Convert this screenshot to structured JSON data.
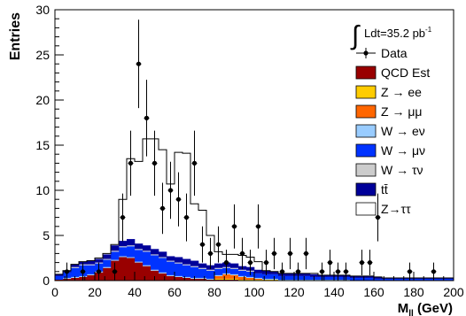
{
  "chart_data": {
    "type": "bar",
    "ylabel": "Entries",
    "xlabel": "M_ll (GeV)",
    "xlabel_main": "M",
    "xlabel_sub": "ll",
    "xlabel_unit": " (GeV)",
    "xlim": [
      0,
      200
    ],
    "ylim": [
      0,
      30
    ],
    "bin_width": 4,
    "x_ticks": [
      0,
      20,
      40,
      60,
      80,
      100,
      120,
      140,
      160,
      180,
      200
    ],
    "y_ticks": [
      0,
      5,
      10,
      15,
      20,
      25,
      30
    ],
    "luminosity_label": "Ldt=35.2 pb",
    "luminosity_sup": "-1",
    "legend_position": "top-right",
    "legend": [
      {
        "key": "data",
        "label": "Data",
        "color": "#000000",
        "marker": "point"
      },
      {
        "key": "qcd",
        "label": "QCD Est",
        "color": "#990000",
        "marker": "box"
      },
      {
        "key": "zee",
        "label": "Z → ee",
        "color": "#FFCC00",
        "marker": "box"
      },
      {
        "key": "zmumu",
        "label": "Z → μμ",
        "color": "#FF6600",
        "marker": "box"
      },
      {
        "key": "wenu",
        "label": "W → eν",
        "color": "#99CCFF",
        "marker": "box"
      },
      {
        "key": "wmunu",
        "label": "W → μν",
        "color": "#0033FF",
        "marker": "box"
      },
      {
        "key": "wtaunu",
        "label": "W → τν",
        "color": "#CCCCCC",
        "marker": "box"
      },
      {
        "key": "ttbar",
        "label": "tt̄",
        "color": "#000099",
        "marker": "box"
      },
      {
        "key": "ztautau",
        "label": "Z→ττ",
        "color": "#FFFFFF",
        "marker": "box"
      }
    ],
    "stack_series": [
      {
        "key": "qcd",
        "color": "#990000",
        "values": [
          0.1,
          0.2,
          0.3,
          0.4,
          0.6,
          0.9,
          1.4,
          2.2,
          2.6,
          2.5,
          2.0,
          1.6,
          1.1,
          0.8,
          0.5,
          0.4,
          0.3,
          0.2,
          0.2,
          0.1,
          0.1,
          0.1,
          0.1,
          0.0,
          0.0,
          0,
          0,
          0,
          0,
          0,
          0,
          0,
          0,
          0,
          0,
          0,
          0,
          0,
          0,
          0,
          0,
          0,
          0,
          0,
          0,
          0,
          0,
          0,
          0,
          0
        ]
      },
      {
        "key": "zee",
        "color": "#FFCC00",
        "values": [
          0,
          0,
          0,
          0,
          0,
          0,
          0,
          0,
          0,
          0,
          0,
          0,
          0,
          0,
          0,
          0,
          0,
          0,
          0,
          0,
          0.1,
          0.1,
          0.1,
          0.1,
          0.1,
          0.1,
          0.1,
          0.1,
          0,
          0,
          0,
          0,
          0,
          0,
          0,
          0,
          0,
          0,
          0,
          0,
          0,
          0,
          0,
          0,
          0,
          0,
          0,
          0,
          0,
          0
        ]
      },
      {
        "key": "zmumu",
        "color": "#FF6600",
        "values": [
          0,
          0,
          0,
          0,
          0,
          0,
          0,
          0,
          0,
          0,
          0,
          0,
          0,
          0,
          0,
          0,
          0,
          0,
          0,
          0,
          0.3,
          0.5,
          0.4,
          0.3,
          0.2,
          0.1,
          0,
          0,
          0,
          0,
          0,
          0,
          0,
          0,
          0,
          0,
          0,
          0,
          0,
          0,
          0,
          0,
          0,
          0,
          0,
          0,
          0,
          0,
          0,
          0
        ]
      },
      {
        "key": "wenu",
        "color": "#99CCFF",
        "values": [
          0,
          0.1,
          0.1,
          0.1,
          0.1,
          0.1,
          0.1,
          0.1,
          0.1,
          0.1,
          0.1,
          0.1,
          0.1,
          0.1,
          0.1,
          0.1,
          0.1,
          0.1,
          0.1,
          0.1,
          0.1,
          0.1,
          0.1,
          0.1,
          0.1,
          0.1,
          0.1,
          0.1,
          0.1,
          0.1,
          0.1,
          0.1,
          0.1,
          0.1,
          0.1,
          0.1,
          0.1,
          0,
          0,
          0,
          0,
          0,
          0,
          0,
          0,
          0,
          0,
          0,
          0,
          0
        ]
      },
      {
        "key": "wmunu",
        "color": "#0033FF",
        "values": [
          0.4,
          0.6,
          1.0,
          1.2,
          1.0,
          0.9,
          0.8,
          0.9,
          1.0,
          1.2,
          1.3,
          1.5,
          1.6,
          1.6,
          1.5,
          1.4,
          1.3,
          1.2,
          1.0,
          0.9,
          0.7,
          0.6,
          0.6,
          0.6,
          0.6,
          0.5,
          0.5,
          0.5,
          0.4,
          0.4,
          0.4,
          0.4,
          0.3,
          0.3,
          0.3,
          0.3,
          0.3,
          0.3,
          0.3,
          0.3,
          0.2,
          0.2,
          0.2,
          0.2,
          0.2,
          0.2,
          0.2,
          0.2,
          0.2,
          0.2
        ]
      },
      {
        "key": "wtaunu",
        "color": "#CCCCCC",
        "values": [
          0,
          0,
          0.1,
          0.1,
          0.1,
          0.1,
          0.1,
          0.1,
          0.1,
          0.1,
          0.1,
          0.1,
          0.1,
          0.1,
          0.1,
          0.1,
          0.1,
          0.1,
          0.1,
          0.1,
          0.1,
          0.1,
          0.1,
          0.1,
          0.1,
          0,
          0,
          0,
          0,
          0,
          0,
          0,
          0,
          0,
          0,
          0,
          0,
          0,
          0,
          0,
          0,
          0,
          0,
          0,
          0,
          0,
          0,
          0,
          0,
          0
        ]
      },
      {
        "key": "ttbar",
        "color": "#000099",
        "values": [
          0.2,
          0.2,
          0.3,
          0.3,
          0.4,
          0.4,
          0.5,
          0.6,
          0.6,
          0.7,
          0.6,
          0.6,
          0.6,
          0.6,
          0.5,
          0.6,
          0.6,
          0.6,
          0.5,
          0.5,
          0.5,
          0.5,
          0.5,
          0.4,
          0.4,
          0.4,
          0.4,
          0.3,
          0.3,
          0.3,
          0.3,
          0.3,
          0.3,
          0.2,
          0.2,
          0.2,
          0.2,
          0.2,
          0.2,
          0.2,
          0.2,
          0.1,
          0.1,
          0.1,
          0.1,
          0.1,
          0.1,
          0.1,
          0.1,
          0.1
        ]
      }
    ],
    "total_outline": [
      0.7,
      1.1,
      1.8,
      2.1,
      2.2,
      2.5,
      3.0,
      4.0,
      9.0,
      13.5,
      13.2,
      15.7,
      15.7,
      14.5,
      10.7,
      14.2,
      14.1,
      8.5,
      7.8,
      5.0,
      3.2,
      2.9,
      2.9,
      2.8,
      2.6,
      2.1,
      1.1,
      1.0,
      0.8,
      0.8,
      0.8,
      0.8,
      0.8,
      0.6,
      0.6,
      0.6,
      0.6,
      0.5,
      0.5,
      0.5,
      0.4,
      0.3,
      0.3,
      0.3,
      0.3,
      0.3,
      0.3,
      0.3,
      0.3,
      0.3
    ],
    "data_points": [
      {
        "x": 6,
        "y": 1
      },
      {
        "x": 14,
        "y": 1
      },
      {
        "x": 22,
        "y": 1
      },
      {
        "x": 30,
        "y": 1
      },
      {
        "x": 34,
        "y": 7
      },
      {
        "x": 38,
        "y": 13
      },
      {
        "x": 42,
        "y": 24
      },
      {
        "x": 46,
        "y": 18
      },
      {
        "x": 50,
        "y": 13
      },
      {
        "x": 54,
        "y": 8
      },
      {
        "x": 58,
        "y": 10
      },
      {
        "x": 62,
        "y": 9
      },
      {
        "x": 66,
        "y": 7
      },
      {
        "x": 70,
        "y": 13
      },
      {
        "x": 74,
        "y": 4
      },
      {
        "x": 78,
        "y": 3
      },
      {
        "x": 82,
        "y": 4
      },
      {
        "x": 86,
        "y": 2
      },
      {
        "x": 90,
        "y": 6
      },
      {
        "x": 94,
        "y": 3
      },
      {
        "x": 98,
        "y": 2
      },
      {
        "x": 102,
        "y": 6
      },
      {
        "x": 106,
        "y": 2
      },
      {
        "x": 110,
        "y": 3
      },
      {
        "x": 114,
        "y": 1
      },
      {
        "x": 118,
        "y": 3
      },
      {
        "x": 122,
        "y": 1
      },
      {
        "x": 126,
        "y": 3
      },
      {
        "x": 134,
        "y": 1
      },
      {
        "x": 138,
        "y": 2
      },
      {
        "x": 142,
        "y": 1
      },
      {
        "x": 146,
        "y": 1
      },
      {
        "x": 154,
        "y": 2
      },
      {
        "x": 158,
        "y": 2
      },
      {
        "x": 162,
        "y": 7
      },
      {
        "x": 178,
        "y": 1
      },
      {
        "x": 190,
        "y": 1
      }
    ]
  }
}
